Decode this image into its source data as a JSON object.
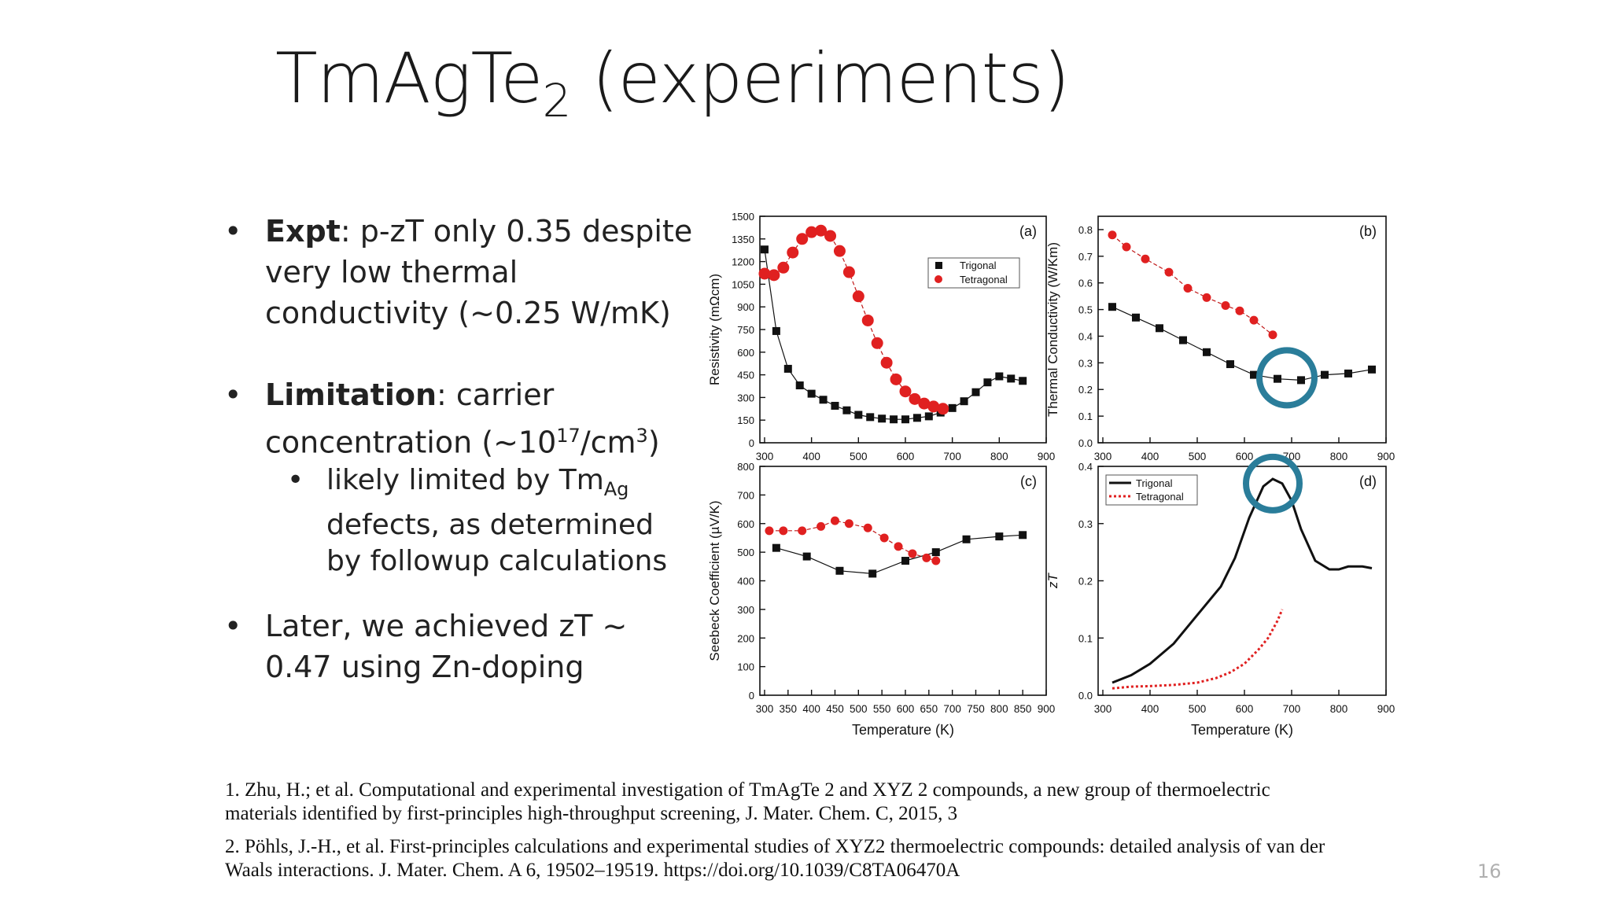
{
  "slide": {
    "title_main": "TmAgTe",
    "title_sub": "2",
    "title_rest": " (experiments)",
    "page_number": "16",
    "bullets": [
      {
        "bold": "Expt",
        "text": ": p-zT only 0.35 despite very low thermal conductivity (~0.25 W/mK)"
      },
      {
        "bold": "Limitation",
        "text": ": carrier concentration (~10",
        "sup1": "17",
        "mid": "/cm",
        "sup2": "3",
        "end": ")"
      },
      {
        "sub_text": "likely limited by Tm",
        "sub_sub": "Ag",
        "sub_rest": " defects, as determined by followup calculations"
      },
      {
        "text": "Later, we achieved zT ~ 0.47 using Zn-doping"
      }
    ],
    "references": [
      "1. Zhu, H.; et al. Computational and experimental investigation of TmAgTe 2 and XYZ 2 compounds, a new group of thermoelectric materials identified by first-principles high-throughput screening, J. Mater. Chem. C, 2015, 3",
      "2. Pöhls, J.-H., et al. First-principles calculations and experimental studies of XYZ2 thermoelectric compounds: detailed analysis of van der Waals interactions. J. Mater. Chem. A 6, 19502–19519. https://doi.org/10.1039/C8TA06470A"
    ]
  },
  "colors": {
    "trigonal": "#111111",
    "tetragonal": "#e02020",
    "highlight": "#2a7d9a"
  },
  "chart_data": [
    {
      "panel": "(a)",
      "type": "scatter",
      "xlabel": "",
      "ylabel": "Resistivity (mΩcm)",
      "xlim": [
        290,
        900
      ],
      "ylim": [
        0,
        1500
      ],
      "yticks": [
        "0",
        "150",
        "300",
        "450",
        "600",
        "750",
        "900",
        "1050",
        "1200",
        "1350",
        "1500"
      ],
      "xticks": [
        "300",
        "400",
        "500",
        "600",
        "700",
        "800",
        "900"
      ],
      "legend": [
        "Trigonal",
        "Tetragonal"
      ],
      "series": [
        {
          "name": "Trigonal",
          "x": [
            300,
            325,
            350,
            375,
            400,
            425,
            450,
            475,
            500,
            525,
            550,
            575,
            600,
            625,
            650,
            675,
            700,
            725,
            750,
            775,
            800,
            825,
            850
          ],
          "y": [
            1280,
            740,
            490,
            380,
            325,
            285,
            245,
            215,
            185,
            170,
            160,
            155,
            155,
            165,
            175,
            200,
            230,
            275,
            335,
            400,
            440,
            425,
            410
          ]
        },
        {
          "name": "Tetragonal",
          "x": [
            300,
            320,
            340,
            360,
            380,
            400,
            420,
            440,
            460,
            480,
            500,
            520,
            540,
            560,
            580,
            600,
            620,
            640,
            660,
            680
          ],
          "y": [
            1120,
            1110,
            1160,
            1260,
            1350,
            1395,
            1405,
            1370,
            1270,
            1130,
            970,
            810,
            660,
            530,
            420,
            340,
            290,
            260,
            240,
            225
          ]
        }
      ]
    },
    {
      "panel": "(b)",
      "type": "scatter",
      "xlabel": "",
      "ylabel": "Thermal Conductivity (W/Km)",
      "xlim": [
        290,
        900
      ],
      "ylim": [
        0,
        0.85
      ],
      "yticks": [
        "0.0",
        "0.1",
        "0.2",
        "0.3",
        "0.4",
        "0.5",
        "0.6",
        "0.7",
        "0.8"
      ],
      "xticks": [
        "300",
        "400",
        "500",
        "600",
        "700",
        "800",
        "900"
      ],
      "series": [
        {
          "name": "Trigonal",
          "x": [
            320,
            370,
            420,
            470,
            520,
            570,
            620,
            670,
            720,
            770,
            820,
            870
          ],
          "y": [
            0.51,
            0.47,
            0.43,
            0.385,
            0.34,
            0.295,
            0.255,
            0.24,
            0.235,
            0.255,
            0.26,
            0.275
          ]
        },
        {
          "name": "Tetragonal",
          "x": [
            320,
            350,
            390,
            440,
            480,
            520,
            560,
            590,
            620,
            660
          ],
          "y": [
            0.78,
            0.735,
            0.69,
            0.64,
            0.58,
            0.545,
            0.515,
            0.495,
            0.46,
            0.405
          ]
        }
      ]
    },
    {
      "panel": "(c)",
      "type": "scatter",
      "xlabel": "Temperature (K)",
      "ylabel": "Seebeck Coefficient (µV/K)",
      "xlim": [
        290,
        900
      ],
      "ylim": [
        0,
        800
      ],
      "yticks": [
        "0",
        "100",
        "200",
        "300",
        "400",
        "500",
        "600",
        "700",
        "800"
      ],
      "xticks": [
        "300",
        "350",
        "400",
        "450",
        "500",
        "550",
        "600",
        "650",
        "700",
        "750",
        "800",
        "850",
        "900"
      ],
      "series": [
        {
          "name": "Trigonal",
          "x": [
            325,
            390,
            460,
            530,
            600,
            665,
            730,
            800,
            850
          ],
          "y": [
            515,
            485,
            435,
            425,
            470,
            500,
            545,
            555,
            560
          ]
        },
        {
          "name": "Tetragonal",
          "x": [
            310,
            340,
            380,
            420,
            450,
            480,
            520,
            555,
            585,
            615,
            645,
            665
          ],
          "y": [
            575,
            575,
            575,
            590,
            610,
            600,
            585,
            550,
            520,
            495,
            480,
            470
          ]
        }
      ]
    },
    {
      "panel": "(d)",
      "type": "line",
      "xlabel": "Temperature (K)",
      "ylabel": "zT",
      "xlim": [
        290,
        900
      ],
      "ylim": [
        0,
        0.4
      ],
      "yticks": [
        "0.0",
        "0.1",
        "0.2",
        "0.3",
        "0.4"
      ],
      "xticks": [
        "300",
        "400",
        "500",
        "600",
        "700",
        "800",
        "900"
      ],
      "legend": [
        "Trigonal",
        "Tetragonal"
      ],
      "series": [
        {
          "name": "Trigonal",
          "x": [
            320,
            360,
            400,
            450,
            500,
            550,
            580,
            610,
            640,
            660,
            680,
            700,
            720,
            750,
            780,
            800,
            820,
            850,
            870
          ],
          "y": [
            0.022,
            0.035,
            0.055,
            0.09,
            0.14,
            0.19,
            0.24,
            0.31,
            0.365,
            0.378,
            0.37,
            0.34,
            0.29,
            0.235,
            0.22,
            0.22,
            0.225,
            0.225,
            0.222
          ]
        },
        {
          "name": "Tetragonal",
          "x": [
            320,
            360,
            400,
            450,
            500,
            540,
            570,
            600,
            630,
            650,
            670,
            680
          ],
          "y": [
            0.012,
            0.015,
            0.016,
            0.018,
            0.022,
            0.03,
            0.04,
            0.055,
            0.08,
            0.1,
            0.13,
            0.15
          ]
        }
      ]
    }
  ]
}
